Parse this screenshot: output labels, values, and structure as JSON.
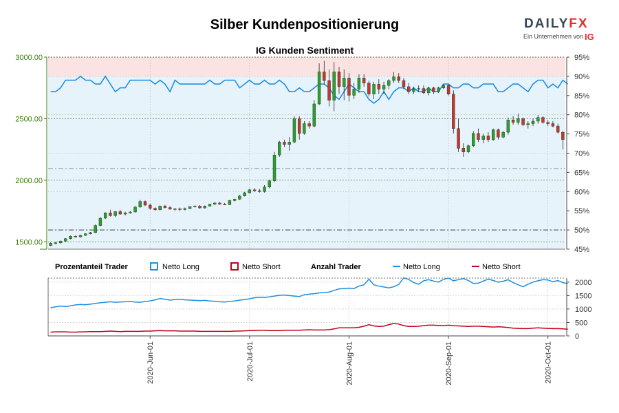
{
  "title": "Silber Kundenpositionierung",
  "brand": {
    "name_a": "DAILY",
    "name_b": "FX",
    "tagline": "Ein Unternehmen von",
    "owner": "IG",
    "color_dark": "#3b4656",
    "color_red": "#e2302d"
  },
  "colors": {
    "up": "#2ca02c",
    "down": "#c0392b",
    "long": "#1f8fdf",
    "short": "#c0001a",
    "long_fill": "#e6f3fb",
    "short_fill": "#fbe3e3",
    "price_axis": "#3a7d0c",
    "grid": "#bdbdbd"
  },
  "chart_data": [
    {
      "type": "candlestick",
      "title": "IG Kunden Sentiment",
      "y_left_ticks": [
        "3000.00",
        "2500.00",
        "2000.00",
        "1500.00"
      ],
      "y_left_values": [
        3000,
        2500,
        2000,
        1500
      ],
      "y_left_range": [
        1440,
        3000
      ],
      "y_right_ticks": [
        "95%",
        "90%",
        "85%",
        "80%",
        "75%",
        "70%",
        "65%",
        "60%",
        "55%",
        "50%",
        "45%"
      ],
      "y_right_range": [
        45,
        95
      ],
      "reference_lines_pct": [
        66,
        50
      ],
      "ohlc": [
        [
          1470,
          1495,
          1465,
          1488
        ],
        [
          1488,
          1500,
          1480,
          1492
        ],
        [
          1492,
          1510,
          1485,
          1505
        ],
        [
          1505,
          1530,
          1500,
          1525
        ],
        [
          1525,
          1550,
          1520,
          1545
        ],
        [
          1545,
          1552,
          1535,
          1540
        ],
        [
          1540,
          1558,
          1535,
          1552
        ],
        [
          1552,
          1570,
          1548,
          1565
        ],
        [
          1565,
          1580,
          1560,
          1575
        ],
        [
          1575,
          1640,
          1570,
          1632
        ],
        [
          1632,
          1700,
          1625,
          1692
        ],
        [
          1692,
          1740,
          1685,
          1735
        ],
        [
          1735,
          1760,
          1705,
          1712
        ],
        [
          1712,
          1750,
          1700,
          1745
        ],
        [
          1745,
          1760,
          1720,
          1725
        ],
        [
          1725,
          1745,
          1715,
          1735
        ],
        [
          1735,
          1750,
          1728,
          1742
        ],
        [
          1742,
          1790,
          1738,
          1782
        ],
        [
          1782,
          1840,
          1776,
          1828
        ],
        [
          1828,
          1835,
          1790,
          1798
        ],
        [
          1798,
          1810,
          1760,
          1772
        ],
        [
          1772,
          1780,
          1752,
          1760
        ],
        [
          1760,
          1795,
          1755,
          1790
        ],
        [
          1790,
          1800,
          1772,
          1778
        ],
        [
          1778,
          1790,
          1760,
          1765
        ],
        [
          1765,
          1775,
          1752,
          1768
        ],
        [
          1768,
          1778,
          1750,
          1762
        ],
        [
          1762,
          1778,
          1755,
          1770
        ],
        [
          1770,
          1790,
          1765,
          1785
        ],
        [
          1785,
          1796,
          1778,
          1790
        ],
        [
          1790,
          1798,
          1770,
          1775
        ],
        [
          1775,
          1795,
          1770,
          1790
        ],
        [
          1790,
          1810,
          1785,
          1805
        ],
        [
          1805,
          1822,
          1798,
          1815
        ],
        [
          1815,
          1822,
          1800,
          1806
        ],
        [
          1806,
          1815,
          1798,
          1802
        ],
        [
          1802,
          1840,
          1798,
          1835
        ],
        [
          1835,
          1850,
          1828,
          1846
        ],
        [
          1846,
          1880,
          1840,
          1872
        ],
        [
          1872,
          1905,
          1868,
          1898
        ],
        [
          1898,
          1930,
          1892,
          1922
        ],
        [
          1922,
          1935,
          1905,
          1915
        ],
        [
          1915,
          1930,
          1900,
          1908
        ],
        [
          1908,
          1960,
          1900,
          1945
        ],
        [
          1945,
          2005,
          1935,
          1995
        ],
        [
          1995,
          2230,
          1985,
          2205
        ],
        [
          2205,
          2320,
          2190,
          2310
        ],
        [
          2310,
          2330,
          2270,
          2290
        ],
        [
          2290,
          2350,
          2240,
          2310
        ],
        [
          2310,
          2520,
          2300,
          2500
        ],
        [
          2500,
          2520,
          2330,
          2380
        ],
        [
          2380,
          2480,
          2370,
          2460
        ],
        [
          2460,
          2480,
          2420,
          2440
        ],
        [
          2440,
          2650,
          2430,
          2620
        ],
        [
          2620,
          2950,
          2610,
          2880
        ],
        [
          2880,
          2970,
          2780,
          2810
        ],
        [
          2810,
          2900,
          2600,
          2650
        ],
        [
          2650,
          2960,
          2560,
          2880
        ],
        [
          2880,
          2920,
          2700,
          2760
        ],
        [
          2760,
          2900,
          2650,
          2830
        ],
        [
          2830,
          2870,
          2640,
          2690
        ],
        [
          2690,
          2790,
          2660,
          2740
        ],
        [
          2740,
          2860,
          2710,
          2830
        ],
        [
          2830,
          2860,
          2760,
          2790
        ],
        [
          2790,
          2810,
          2680,
          2700
        ],
        [
          2700,
          2800,
          2660,
          2780
        ],
        [
          2780,
          2820,
          2700,
          2740
        ],
        [
          2740,
          2800,
          2700,
          2770
        ],
        [
          2770,
          2820,
          2740,
          2810
        ],
        [
          2810,
          2880,
          2790,
          2840
        ],
        [
          2840,
          2870,
          2790,
          2810
        ],
        [
          2810,
          2830,
          2740,
          2760
        ],
        [
          2760,
          2790,
          2700,
          2720
        ],
        [
          2720,
          2760,
          2700,
          2740
        ],
        [
          2740,
          2770,
          2720,
          2745
        ],
        [
          2745,
          2770,
          2700,
          2710
        ],
        [
          2710,
          2760,
          2690,
          2750
        ],
        [
          2750,
          2760,
          2700,
          2720
        ],
        [
          2720,
          2760,
          2710,
          2750
        ],
        [
          2750,
          2780,
          2740,
          2770
        ],
        [
          2770,
          2780,
          2690,
          2700
        ],
        [
          2700,
          2730,
          2380,
          2420
        ],
        [
          2420,
          2500,
          2230,
          2260
        ],
        [
          2260,
          2300,
          2190,
          2230
        ],
        [
          2230,
          2290,
          2220,
          2280
        ],
        [
          2280,
          2400,
          2270,
          2380
        ],
        [
          2380,
          2420,
          2310,
          2330
        ],
        [
          2330,
          2380,
          2300,
          2360
        ],
        [
          2360,
          2390,
          2310,
          2330
        ],
        [
          2330,
          2420,
          2320,
          2410
        ],
        [
          2410,
          2420,
          2330,
          2350
        ],
        [
          2350,
          2400,
          2340,
          2390
        ],
        [
          2390,
          2510,
          2370,
          2490
        ],
        [
          2490,
          2520,
          2450,
          2470
        ],
        [
          2470,
          2540,
          2450,
          2500
        ],
        [
          2500,
          2510,
          2440,
          2450
        ],
        [
          2450,
          2480,
          2420,
          2460
        ],
        [
          2460,
          2500,
          2440,
          2480
        ],
        [
          2480,
          2530,
          2460,
          2510
        ],
        [
          2510,
          2520,
          2460,
          2470
        ],
        [
          2470,
          2490,
          2440,
          2460
        ],
        [
          2460,
          2480,
          2430,
          2440
        ],
        [
          2440,
          2460,
          2380,
          2390
        ],
        [
          2390,
          2400,
          2250,
          2330
        ]
      ],
      "long_pct": [
        86,
        86,
        87,
        89,
        89,
        89,
        90,
        89,
        89,
        88,
        88,
        90,
        88,
        86,
        87,
        87,
        89,
        89,
        89,
        89,
        89,
        88,
        89,
        88,
        86,
        89,
        88,
        88,
        88,
        88,
        88,
        88,
        89,
        88,
        88,
        89,
        89,
        89,
        87,
        88,
        89,
        88,
        88,
        89,
        88,
        88,
        89,
        88,
        86,
        86,
        87,
        86,
        86,
        87,
        88,
        88,
        87,
        85,
        84,
        86,
        88,
        87,
        86,
        86,
        84,
        83,
        84,
        86,
        84,
        86,
        87,
        87,
        86,
        87,
        86,
        86,
        87,
        86,
        86,
        88,
        88,
        87,
        87,
        88,
        88,
        87,
        87,
        88,
        88,
        88,
        86,
        86,
        87,
        88,
        88,
        87,
        86,
        88,
        89,
        89,
        87,
        88,
        87,
        89,
        88
      ]
    },
    {
      "type": "line",
      "y_ticks": [
        "2000",
        "1500",
        "1000",
        "500",
        "0"
      ],
      "y_values": [
        2000,
        1500,
        1000,
        500,
        0
      ],
      "y_range": [
        0,
        2200
      ],
      "x_tick_labels": [
        "2020-Jun-01",
        "2020-Jul-01",
        "2020-Aug-01",
        "2020-Sep-01",
        "2020-Oct-01"
      ],
      "x_tick_index": [
        20,
        40,
        60,
        80,
        100
      ],
      "series": [
        {
          "name": "Netto Long",
          "values": [
            1050,
            1080,
            1110,
            1090,
            1120,
            1150,
            1170,
            1160,
            1180,
            1210,
            1230,
            1250,
            1270,
            1250,
            1260,
            1270,
            1280,
            1260,
            1250,
            1280,
            1300,
            1340,
            1390,
            1360,
            1330,
            1350,
            1360,
            1340,
            1330,
            1320,
            1310,
            1320,
            1300,
            1290,
            1270,
            1260,
            1280,
            1300,
            1330,
            1350,
            1380,
            1420,
            1440,
            1430,
            1450,
            1480,
            1510,
            1520,
            1500,
            1480,
            1460,
            1530,
            1550,
            1570,
            1600,
            1610,
            1630,
            1690,
            1750,
            1760,
            1770,
            1760,
            1850,
            1900,
            2110,
            1900,
            1850,
            1820,
            1780,
            1830,
            1910,
            2160,
            2100,
            1980,
            1920,
            2050,
            2090,
            2040,
            2000,
            2100,
            2150,
            2050,
            2090,
            2130,
            2060,
            1950,
            1960,
            2040,
            2110,
            2060,
            2000,
            2030,
            2090,
            1980,
            1900,
            1830,
            1920,
            2000,
            2050,
            2090,
            2080,
            2010,
            2060,
            1980,
            1940
          ]
        },
        {
          "name": "Netto Short",
          "values": [
            140,
            150,
            150,
            150,
            140,
            140,
            150,
            150,
            160,
            160,
            160,
            170,
            180,
            170,
            160,
            170,
            170,
            170,
            170,
            180,
            180,
            190,
            200,
            190,
            190,
            190,
            180,
            180,
            180,
            180,
            170,
            170,
            170,
            170,
            170,
            170,
            170,
            180,
            180,
            190,
            200,
            200,
            210,
            210,
            200,
            200,
            200,
            210,
            210,
            210,
            210,
            220,
            230,
            220,
            220,
            220,
            230,
            260,
            300,
            300,
            300,
            300,
            320,
            360,
            420,
            370,
            350,
            360,
            420,
            460,
            440,
            380,
            350,
            350,
            360,
            380,
            400,
            400,
            390,
            380,
            400,
            380,
            370,
            360,
            350,
            360,
            360,
            350,
            340,
            330,
            340,
            330,
            310,
            290,
            280,
            270,
            270,
            290,
            300,
            290,
            280,
            270,
            270,
            260,
            250
          ]
        }
      ]
    }
  ],
  "legend": {
    "group1": "Prozentanteil Trader",
    "group2": "Anzahl Trader",
    "long": "Netto Long",
    "short": "Netto Short"
  }
}
